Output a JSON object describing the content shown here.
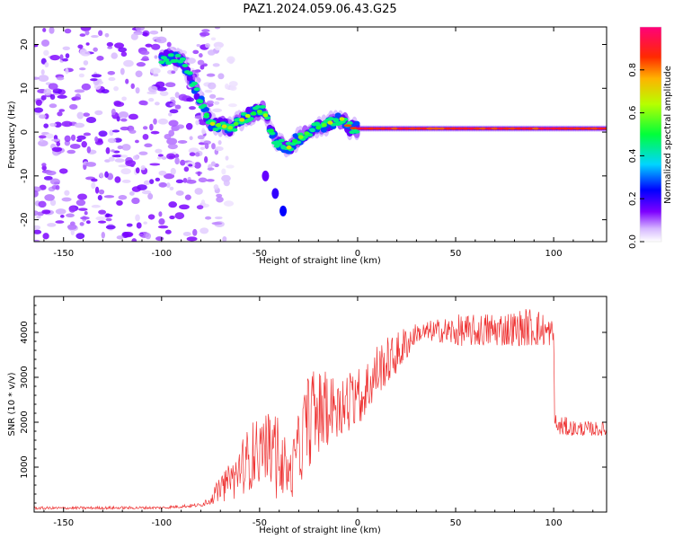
{
  "title": "PAZ1.2024.059.06.43.G25",
  "chart_data": [
    {
      "type": "heatmap",
      "xlabel": "Height of straight line (km)",
      "ylabel": "Frequency (Hz)",
      "xlim": [
        -165,
        127
      ],
      "ylim": [
        -25,
        24
      ],
      "xticks": [
        -150,
        -100,
        -50,
        0,
        50,
        100
      ],
      "yticks": [
        -20,
        -10,
        0,
        10,
        20
      ],
      "colorbar": {
        "label": "Normalized spectral amplitude",
        "range": [
          0,
          1
        ],
        "ticks": [
          "0.0",
          "0.2",
          "0.4",
          "0.6",
          "0.8"
        ],
        "colormap": "gist_rainbow_r"
      },
      "ridge": {
        "x": [
          -100,
          -90,
          -80,
          -75,
          -65,
          -55,
          -48,
          -42,
          -36,
          -32,
          -25,
          -15,
          -8,
          -4,
          0,
          50,
          100,
          127
        ],
        "y": [
          17,
          16.5,
          7,
          2,
          1,
          4,
          5,
          -2,
          -4,
          -2,
          0,
          2,
          3,
          1,
          0.8,
          0.8,
          0.8,
          0.8
        ]
      },
      "noise_region_x": [
        -165,
        -80
      ],
      "spur": {
        "x": [
          -47,
          -42,
          -38
        ],
        "y": [
          -10,
          -14,
          -18
        ]
      },
      "grid": false
    },
    {
      "type": "line",
      "xlabel": "Height of straight line (km)",
      "ylabel": "SNR (10 * v/v)",
      "xlim": [
        -165,
        127
      ],
      "ylim": [
        0,
        4800
      ],
      "xticks": [
        -150,
        -100,
        -50,
        0,
        50,
        100
      ],
      "yticks": [
        1000,
        2000,
        3000,
        4000
      ],
      "color": "#ee3333",
      "envelope": {
        "x": [
          -165,
          -100,
          -80,
          -72,
          -62,
          -55,
          -48,
          -40,
          -35,
          -30,
          -25,
          -20,
          -15,
          -10,
          -5,
          0,
          5,
          10,
          20,
          25,
          30,
          40,
          50,
          60,
          70,
          80,
          90,
          100,
          100.5,
          101,
          110,
          127
        ],
        "low": [
          60,
          70,
          120,
          200,
          300,
          500,
          700,
          200,
          150,
          600,
          1000,
          1300,
          1500,
          1700,
          1700,
          1900,
          2200,
          2600,
          3100,
          3400,
          3800,
          3800,
          3700,
          3700,
          3700,
          3700,
          3700,
          3700,
          2000,
          1700,
          1700,
          1700
        ],
        "high": [
          120,
          130,
          200,
          650,
          1300,
          2000,
          2200,
          2200,
          1300,
          2200,
          3100,
          3200,
          3100,
          3000,
          3100,
          3200,
          3500,
          3800,
          4000,
          4200,
          4200,
          4300,
          4400,
          4400,
          4500,
          4500,
          4600,
          4300,
          2300,
          2200,
          2050,
          2000
        ]
      },
      "grid": false
    }
  ]
}
